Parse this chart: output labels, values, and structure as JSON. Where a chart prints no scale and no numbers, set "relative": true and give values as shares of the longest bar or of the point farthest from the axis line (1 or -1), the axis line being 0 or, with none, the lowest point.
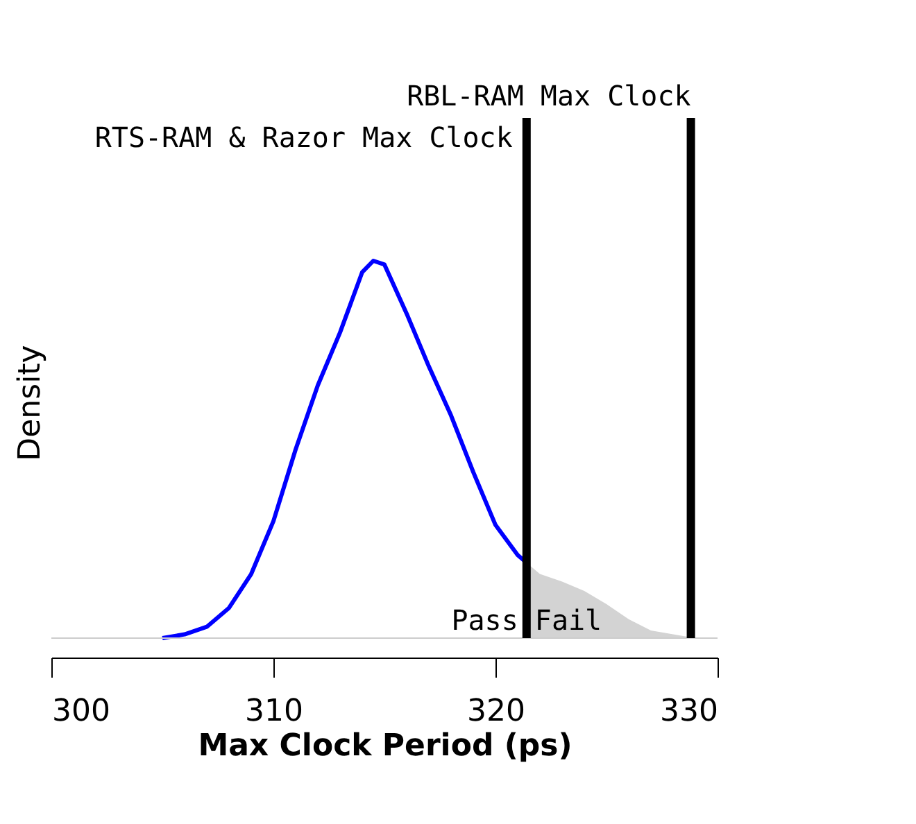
{
  "chart_data": {
    "type": "line",
    "relative": true,
    "xlabel": "Max Clock Period (ps)",
    "ylabel": "Density",
    "xlim": [
      300,
      330
    ],
    "xticks": [
      300,
      310,
      320,
      330
    ],
    "grid": false,
    "series": [
      {
        "color": "#0000ff",
        "x": [
          305,
          306,
          307,
          308,
          309,
          310,
          311,
          312,
          313,
          314,
          314.5,
          315,
          316,
          317,
          318,
          319,
          320,
          321,
          321.4
        ],
        "values": [
          0,
          0.01,
          0.03,
          0.08,
          0.17,
          0.31,
          0.5,
          0.67,
          0.81,
          0.97,
          1,
          0.99,
          0.86,
          0.72,
          0.59,
          0.44,
          0.3,
          0.22,
          0.2
        ]
      },
      {
        "type": "area",
        "color": "#d3d3d3",
        "x": [
          321.4,
          322,
          323,
          324,
          325,
          326,
          327,
          328,
          329
        ],
        "values": [
          0.2,
          0.17,
          0.15,
          0.125,
          0.09,
          0.05,
          0.02,
          0.01,
          0
        ]
      }
    ],
    "ref_lines": [
      {
        "axis": "x",
        "value": 321.4,
        "label": "RTS-RAM & Razor Max Clock",
        "color": "#000000"
      },
      {
        "axis": "x",
        "value": 328.8,
        "label": "RBL-RAM Max Clock",
        "color": "#000000"
      }
    ],
    "annotations": [
      "Pass",
      "Fail"
    ]
  }
}
